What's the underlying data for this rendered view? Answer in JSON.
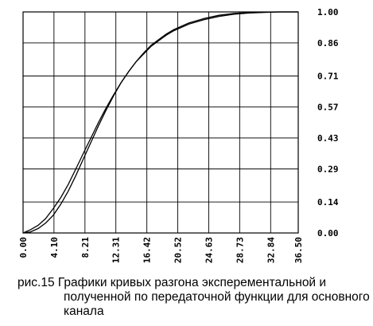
{
  "caption": {
    "line1": "рис.15 Графики кривых разгона эксперементальной и",
    "line2": "полученной по передаточной функции для основного канала"
  },
  "chart_data": {
    "type": "line",
    "title": "",
    "xlabel": "",
    "ylabel": "",
    "xlim": [
      0,
      36.5
    ],
    "ylim": [
      0,
      1.0
    ],
    "x_ticks": [
      0,
      4.1,
      8.21,
      12.31,
      16.42,
      20.52,
      24.63,
      28.73,
      32.84,
      36.5
    ],
    "x_tick_labels": [
      "0.00",
      "4.10",
      "8.21",
      "12.31",
      "16.42",
      "20.52",
      "24.63",
      "28.73",
      "32.84",
      "36.50"
    ],
    "y_ticks": [
      0,
      0.14,
      0.29,
      0.43,
      0.57,
      0.71,
      0.86,
      1.0
    ],
    "y_tick_labels": [
      "0.00",
      "0.14",
      "0.29",
      "0.43",
      "0.57",
      "0.71",
      "0.86",
      "1.00"
    ],
    "grid": true,
    "series": [
      {
        "x": [
          0,
          1,
          2,
          3,
          4,
          5,
          6,
          7,
          8,
          9,
          10,
          11,
          12,
          13,
          14,
          15,
          16,
          17,
          18,
          19,
          20,
          22,
          24,
          26,
          28,
          30,
          32,
          34,
          36.5
        ],
        "y": [
          0,
          0.015,
          0.035,
          0.065,
          0.11,
          0.16,
          0.22,
          0.29,
          0.36,
          0.43,
          0.5,
          0.565,
          0.625,
          0.68,
          0.73,
          0.775,
          0.81,
          0.845,
          0.87,
          0.895,
          0.915,
          0.945,
          0.965,
          0.98,
          0.99,
          0.995,
          0.998,
          1.0,
          1.0
        ]
      },
      {
        "x": [
          0,
          1,
          2,
          3,
          4,
          5,
          6,
          7,
          8,
          9,
          10,
          11,
          12,
          13,
          14,
          15,
          16,
          17,
          18,
          19,
          20,
          22,
          24,
          26,
          28,
          30,
          32,
          34,
          36.5
        ],
        "y": [
          0,
          0.005,
          0.02,
          0.045,
          0.08,
          0.13,
          0.19,
          0.26,
          0.335,
          0.41,
          0.485,
          0.555,
          0.62,
          0.68,
          0.73,
          0.775,
          0.815,
          0.85,
          0.875,
          0.9,
          0.92,
          0.95,
          0.97,
          0.985,
          0.993,
          0.997,
          0.999,
          1.0,
          1.0
        ]
      }
    ]
  }
}
